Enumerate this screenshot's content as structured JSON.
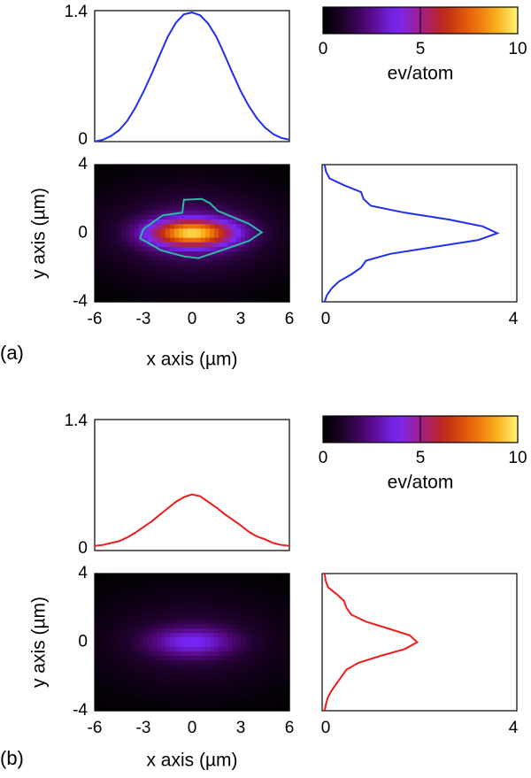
{
  "chart_data": [
    {
      "panel": "(a)",
      "type": "heatmap",
      "colorbar": {
        "min": 0,
        "max": 10,
        "ticks": [
          "0",
          "5",
          "10"
        ],
        "label": "ev/atom"
      },
      "heatmap": {
        "xlabel": "x axis (µm)",
        "ylabel": "y axis (µm)",
        "xlim": [
          -6,
          6
        ],
        "ylim": [
          -4,
          4
        ],
        "xticks": [
          "-6",
          "-3",
          "0",
          "3",
          "6"
        ],
        "yticks": [
          "4",
          "0",
          "-4"
        ],
        "peak": 7.5,
        "sigma_x": 1.8,
        "sigma_y": 0.55,
        "halo_amp": 2.2,
        "halo_sigma_x": 3.8,
        "halo_sigma_y": 1.9,
        "contour": {
          "color": "#2fb6a6",
          "points": [
            [
              -3.0,
              0.25
            ],
            [
              -1.8,
              1.05
            ],
            [
              -0.6,
              1.2
            ],
            [
              -0.5,
              1.95
            ],
            [
              0.6,
              2.0
            ],
            [
              1.1,
              1.75
            ],
            [
              1.6,
              1.3
            ],
            [
              3.5,
              0.55
            ],
            [
              4.3,
              0.05
            ],
            [
              3.5,
              -0.45
            ],
            [
              1.5,
              -1.1
            ],
            [
              0.4,
              -1.45
            ],
            [
              -0.5,
              -1.35
            ],
            [
              -1.9,
              -1.0
            ],
            [
              -3.2,
              -0.3
            ]
          ]
        }
      },
      "x_profile": {
        "color": "#1f2ff0",
        "ylim": [
          0,
          1.4
        ],
        "yticks": [
          "1.4",
          "0"
        ],
        "x": [
          -6,
          -5.5,
          -5,
          -4.5,
          -4,
          -3.5,
          -3,
          -2.5,
          -2,
          -1.5,
          -1,
          -0.5,
          0,
          0.5,
          1,
          1.5,
          2,
          2.5,
          3,
          3.5,
          4,
          4.5,
          5,
          5.5,
          6
        ],
        "y": [
          0.0,
          0.02,
          0.06,
          0.12,
          0.22,
          0.36,
          0.53,
          0.72,
          0.92,
          1.12,
          1.27,
          1.36,
          1.38,
          1.35,
          1.26,
          1.12,
          0.93,
          0.73,
          0.54,
          0.38,
          0.25,
          0.15,
          0.08,
          0.04,
          0.02
        ]
      },
      "y_profile": {
        "color": "#1f2ff0",
        "xlim": [
          0,
          4
        ],
        "xticks": [
          "0",
          "4"
        ],
        "y": [
          4.0,
          3.6,
          3.2,
          2.8,
          2.4,
          2.0,
          1.6,
          1.2,
          0.8,
          0.4,
          0.0,
          -0.4,
          -0.8,
          -1.2,
          -1.6,
          -2.0,
          -2.4,
          -2.8,
          -3.2,
          -3.6,
          -4.0
        ],
        "x": [
          0.05,
          0.08,
          0.15,
          0.45,
          0.8,
          0.85,
          1.0,
          1.7,
          2.6,
          3.3,
          3.6,
          3.2,
          2.3,
          1.4,
          0.9,
          0.8,
          0.6,
          0.35,
          0.2,
          0.1,
          0.05
        ]
      }
    },
    {
      "panel": "(b)",
      "type": "heatmap",
      "colorbar": {
        "min": 0,
        "max": 10,
        "ticks": [
          "0",
          "5",
          "10"
        ],
        "label": "ev/atom"
      },
      "heatmap": {
        "xlabel": "x axis (µm)",
        "ylabel": "y axis (µm)",
        "xlim": [
          -6,
          6
        ],
        "ylim": [
          -4,
          4
        ],
        "xticks": [
          "-6",
          "-3",
          "0",
          "3",
          "6"
        ],
        "yticks": [
          "4",
          "0",
          "-4"
        ],
        "peak": 2.4,
        "sigma_x": 1.9,
        "sigma_y": 0.6,
        "halo_amp": 1.4,
        "halo_sigma_x": 4.0,
        "halo_sigma_y": 2.0,
        "contour": null
      },
      "x_profile": {
        "color": "#ee1c1c",
        "ylim": [
          0,
          1.4
        ],
        "yticks": [
          "1.4",
          "0"
        ],
        "x": [
          -6,
          -5.5,
          -5,
          -4.5,
          -4,
          -3.5,
          -3,
          -2.5,
          -2,
          -1.5,
          -1,
          -0.5,
          0,
          0.5,
          1,
          1.5,
          2,
          2.5,
          3,
          3.5,
          4,
          4.5,
          5,
          5.5,
          6
        ],
        "y": [
          0.05,
          0.06,
          0.08,
          0.1,
          0.14,
          0.19,
          0.25,
          0.31,
          0.38,
          0.45,
          0.52,
          0.57,
          0.6,
          0.58,
          0.52,
          0.46,
          0.39,
          0.33,
          0.27,
          0.2,
          0.15,
          0.12,
          0.08,
          0.06,
          0.05
        ]
      },
      "y_profile": {
        "color": "#ee1c1c",
        "xlim": [
          0,
          4
        ],
        "xticks": [
          "0",
          "4"
        ],
        "y": [
          4.0,
          3.6,
          3.2,
          2.8,
          2.4,
          2.0,
          1.6,
          1.2,
          0.8,
          0.4,
          0.0,
          -0.4,
          -0.8,
          -1.2,
          -1.6,
          -2.0,
          -2.4,
          -2.8,
          -3.2,
          -3.6,
          -4.0
        ],
        "x": [
          0.05,
          0.07,
          0.12,
          0.3,
          0.45,
          0.5,
          0.6,
          0.9,
          1.35,
          1.8,
          1.95,
          1.7,
          1.2,
          0.75,
          0.5,
          0.4,
          0.3,
          0.2,
          0.12,
          0.08,
          0.05
        ]
      }
    }
  ]
}
